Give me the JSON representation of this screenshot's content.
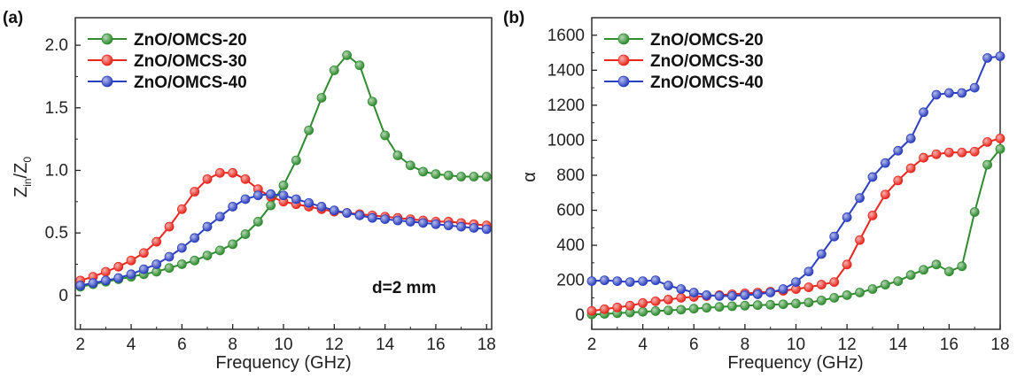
{
  "chart_data": [
    {
      "panel_label": "(a)",
      "type": "line",
      "xlabel": "Frequency (GHz)",
      "ylabel": {
        "main": "Z",
        "sub1": "in",
        "mid": "/Z",
        "sub2": "0"
      },
      "xlim": [
        1.8,
        18.2
      ],
      "ylim": [
        -0.27,
        2.22
      ],
      "xticks": [
        2,
        4,
        6,
        8,
        10,
        12,
        14,
        16,
        18
      ],
      "yticks": [
        0,
        0.5,
        1.0,
        1.5,
        2.0
      ],
      "ytick_labels": [
        "0",
        "0.5",
        "1.0",
        "1.5",
        "2.0"
      ],
      "annotation": "d=2 mm",
      "legend_position": "top-left",
      "series": [
        {
          "name": "ZnO/OMCS-20",
          "color": "#2e8b2e",
          "x": [
            2.0,
            2.5,
            3.0,
            3.5,
            4.0,
            4.5,
            5.0,
            5.5,
            6.0,
            6.5,
            7.0,
            7.5,
            8.0,
            8.5,
            9.0,
            9.5,
            10.0,
            10.5,
            11.0,
            11.5,
            12.0,
            12.5,
            13.0,
            13.5,
            14.0,
            14.5,
            15.0,
            15.5,
            16.0,
            16.5,
            17.0,
            17.5,
            18.0
          ],
          "y": [
            0.07,
            0.09,
            0.11,
            0.13,
            0.15,
            0.17,
            0.19,
            0.22,
            0.25,
            0.28,
            0.32,
            0.36,
            0.41,
            0.49,
            0.59,
            0.72,
            0.88,
            1.08,
            1.32,
            1.58,
            1.8,
            1.92,
            1.84,
            1.55,
            1.28,
            1.12,
            1.04,
            0.99,
            0.97,
            0.96,
            0.95,
            0.95,
            0.95
          ]
        },
        {
          "name": "ZnO/OMCS-30",
          "color": "#e8261d",
          "x": [
            2.0,
            2.5,
            3.0,
            3.5,
            4.0,
            4.5,
            5.0,
            5.5,
            6.0,
            6.5,
            7.0,
            7.5,
            8.0,
            8.5,
            9.0,
            9.5,
            10.0,
            10.5,
            11.0,
            11.5,
            12.0,
            12.5,
            13.0,
            13.5,
            14.0,
            14.5,
            15.0,
            15.5,
            16.0,
            16.5,
            17.0,
            17.5,
            18.0
          ],
          "y": [
            0.12,
            0.15,
            0.19,
            0.23,
            0.28,
            0.34,
            0.43,
            0.55,
            0.69,
            0.83,
            0.93,
            0.98,
            0.98,
            0.93,
            0.85,
            0.79,
            0.75,
            0.73,
            0.71,
            0.69,
            0.67,
            0.66,
            0.65,
            0.64,
            0.63,
            0.62,
            0.61,
            0.6,
            0.59,
            0.59,
            0.58,
            0.57,
            0.56
          ]
        },
        {
          "name": "ZnO/OMCS-40",
          "color": "#2b3fbf",
          "x": [
            2.0,
            2.5,
            3.0,
            3.5,
            4.0,
            4.5,
            5.0,
            5.5,
            6.0,
            6.5,
            7.0,
            7.5,
            8.0,
            8.5,
            9.0,
            9.5,
            10.0,
            10.5,
            11.0,
            11.5,
            12.0,
            12.5,
            13.0,
            13.5,
            14.0,
            14.5,
            15.0,
            15.5,
            16.0,
            16.5,
            17.0,
            17.5,
            18.0
          ],
          "y": [
            0.08,
            0.1,
            0.12,
            0.14,
            0.17,
            0.21,
            0.25,
            0.31,
            0.38,
            0.46,
            0.55,
            0.63,
            0.71,
            0.77,
            0.8,
            0.81,
            0.8,
            0.77,
            0.74,
            0.71,
            0.68,
            0.66,
            0.64,
            0.62,
            0.61,
            0.6,
            0.59,
            0.58,
            0.57,
            0.56,
            0.55,
            0.54,
            0.53
          ]
        }
      ]
    },
    {
      "panel_label": "(b)",
      "type": "line",
      "xlabel": "Frequency (GHz)",
      "ylabel": "α",
      "xlim": [
        2,
        18
      ],
      "ylim": [
        -80,
        1700
      ],
      "xticks": [
        2,
        4,
        6,
        8,
        10,
        12,
        14,
        16,
        18
      ],
      "yticks": [
        0,
        200,
        400,
        600,
        800,
        1000,
        1200,
        1400,
        1600
      ],
      "ytick_labels": [
        "0",
        "200",
        "400",
        "600",
        "800",
        "1000",
        "1200",
        "1400",
        "1600"
      ],
      "legend_position": "top-left",
      "series": [
        {
          "name": "ZnO/OMCS-20",
          "color": "#2e8b2e",
          "x": [
            2.0,
            2.5,
            3.0,
            3.5,
            4.0,
            4.5,
            5.0,
            5.5,
            6.0,
            6.5,
            7.0,
            7.5,
            8.0,
            8.5,
            9.0,
            9.5,
            10.0,
            10.5,
            11.0,
            11.5,
            12.0,
            12.5,
            13.0,
            13.5,
            14.0,
            14.5,
            15.0,
            15.5,
            16.0,
            16.5,
            17.0,
            17.5,
            18.0
          ],
          "y": [
            5,
            8,
            12,
            16,
            20,
            24,
            28,
            32,
            38,
            43,
            48,
            52,
            55,
            58,
            60,
            63,
            67,
            73,
            85,
            100,
            115,
            130,
            150,
            175,
            195,
            230,
            260,
            290,
            250,
            280,
            590,
            860,
            950
          ]
        },
        {
          "name": "ZnO/OMCS-30",
          "color": "#e8261d",
          "x": [
            2.0,
            2.5,
            3.0,
            3.5,
            4.0,
            4.5,
            5.0,
            5.5,
            6.0,
            6.5,
            7.0,
            7.5,
            8.0,
            8.5,
            9.0,
            9.5,
            10.0,
            10.5,
            11.0,
            11.5,
            12.0,
            12.5,
            13.0,
            13.5,
            14.0,
            14.5,
            15.0,
            15.5,
            16.0,
            16.5,
            17.0,
            17.5,
            18.0
          ],
          "y": [
            25,
            35,
            45,
            55,
            70,
            80,
            90,
            100,
            105,
            110,
            115,
            120,
            125,
            130,
            135,
            140,
            150,
            160,
            175,
            190,
            290,
            430,
            570,
            690,
            770,
            840,
            900,
            920,
            930,
            930,
            935,
            990,
            1010
          ]
        },
        {
          "name": "ZnO/OMCS-40",
          "color": "#2b3fbf",
          "x": [
            2.0,
            2.5,
            3.0,
            3.5,
            4.0,
            4.5,
            5.0,
            5.5,
            6.0,
            6.5,
            7.0,
            7.5,
            8.0,
            8.5,
            9.0,
            9.5,
            10.0,
            10.5,
            11.0,
            11.5,
            12.0,
            12.5,
            13.0,
            13.5,
            14.0,
            14.5,
            15.0,
            15.5,
            16.0,
            16.5,
            17.0,
            17.5,
            18.0
          ],
          "y": [
            195,
            200,
            195,
            190,
            195,
            200,
            170,
            150,
            130,
            115,
            110,
            110,
            115,
            120,
            130,
            150,
            190,
            250,
            350,
            450,
            560,
            670,
            790,
            870,
            940,
            1010,
            1160,
            1260,
            1270,
            1270,
            1300,
            1470,
            1480
          ]
        }
      ]
    }
  ]
}
